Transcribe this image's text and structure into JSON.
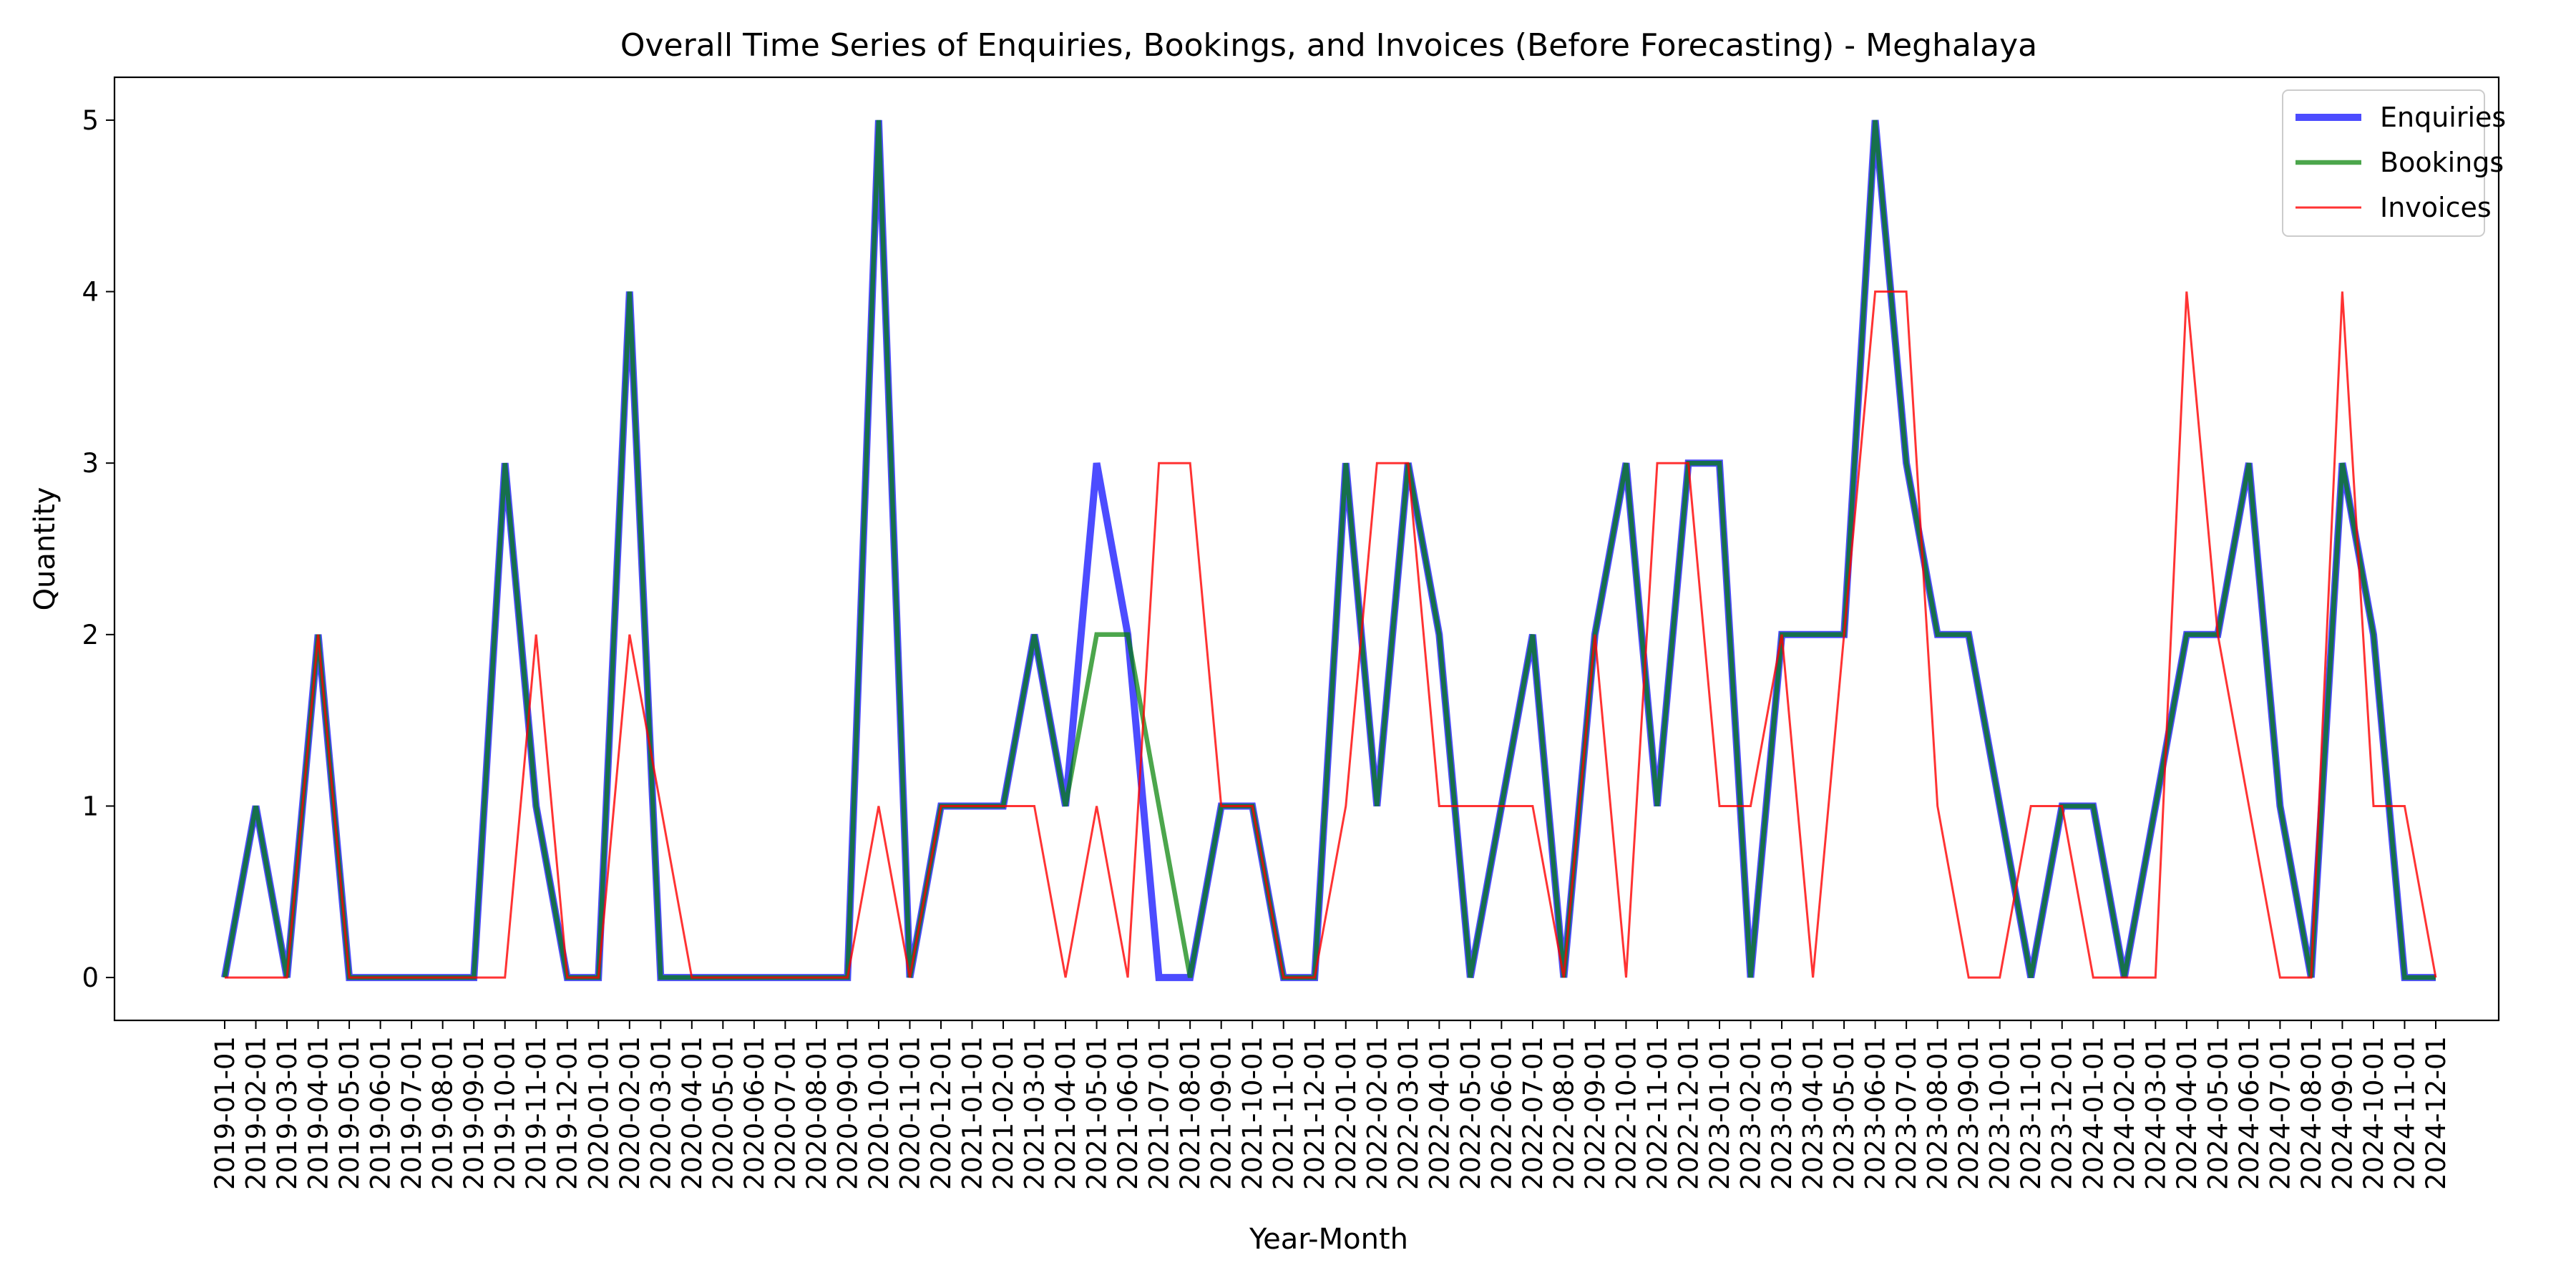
{
  "chart_data": {
    "type": "line",
    "title": "Overall Time Series of Enquiries, Bookings, and Invoices (Before Forecasting) - Meghalaya",
    "xlabel": "Year-Month",
    "ylabel": "Quantity",
    "ylim": [
      -0.25,
      5.25
    ],
    "yticks": [
      0,
      1,
      2,
      3,
      4,
      5
    ],
    "grid": false,
    "legend_position": "top-right",
    "categories": [
      "2019-01-01",
      "2019-02-01",
      "2019-03-01",
      "2019-04-01",
      "2019-05-01",
      "2019-06-01",
      "2019-07-01",
      "2019-08-01",
      "2019-09-01",
      "2019-10-01",
      "2019-11-01",
      "2019-12-01",
      "2020-01-01",
      "2020-02-01",
      "2020-03-01",
      "2020-04-01",
      "2020-05-01",
      "2020-06-01",
      "2020-07-01",
      "2020-08-01",
      "2020-09-01",
      "2020-10-01",
      "2020-11-01",
      "2020-12-01",
      "2021-01-01",
      "2021-02-01",
      "2021-03-01",
      "2021-04-01",
      "2021-05-01",
      "2021-06-01",
      "2021-07-01",
      "2021-08-01",
      "2021-09-01",
      "2021-10-01",
      "2021-11-01",
      "2021-12-01",
      "2022-01-01",
      "2022-02-01",
      "2022-03-01",
      "2022-04-01",
      "2022-05-01",
      "2022-06-01",
      "2022-07-01",
      "2022-08-01",
      "2022-09-01",
      "2022-10-01",
      "2022-11-01",
      "2022-12-01",
      "2023-01-01",
      "2023-02-01",
      "2023-03-01",
      "2023-04-01",
      "2023-05-01",
      "2023-06-01",
      "2023-07-01",
      "2023-08-01",
      "2023-09-01",
      "2023-10-01",
      "2023-11-01",
      "2023-12-01",
      "2024-01-01",
      "2024-02-01",
      "2024-03-01",
      "2024-04-01",
      "2024-05-01",
      "2024-06-01",
      "2024-07-01",
      "2024-08-01",
      "2024-09-01",
      "2024-10-01",
      "2024-11-01",
      "2024-12-01"
    ],
    "series": [
      {
        "name": "Enquiries",
        "color": "#0000ff",
        "values": [
          0,
          1,
          0,
          2,
          0,
          0,
          0,
          0,
          0,
          3,
          1,
          0,
          0,
          4,
          0,
          0,
          0,
          0,
          0,
          0,
          0,
          5,
          0,
          1,
          1,
          1,
          2,
          1,
          3,
          2,
          0,
          0,
          1,
          1,
          0,
          0,
          3,
          1,
          3,
          2,
          0,
          1,
          2,
          0,
          2,
          3,
          1,
          3,
          3,
          0,
          2,
          2,
          2,
          5,
          3,
          2,
          2,
          1,
          0,
          1,
          1,
          0,
          1,
          2,
          2,
          3,
          1,
          0,
          3,
          2,
          0,
          0
        ]
      },
      {
        "name": "Bookings",
        "color": "#008000",
        "values": [
          0,
          1,
          0,
          2,
          0,
          0,
          0,
          0,
          0,
          3,
          1,
          0,
          0,
          4,
          0,
          0,
          0,
          0,
          0,
          0,
          0,
          5,
          0,
          1,
          1,
          1,
          2,
          1,
          2,
          2,
          1,
          0,
          1,
          1,
          0,
          0,
          3,
          1,
          3,
          2,
          0,
          1,
          2,
          0,
          2,
          3,
          1,
          3,
          3,
          0,
          2,
          2,
          2,
          5,
          3,
          2,
          2,
          1,
          0,
          1,
          1,
          0,
          1,
          2,
          2,
          3,
          1,
          0,
          3,
          2,
          0,
          0
        ]
      },
      {
        "name": "Invoices",
        "color": "#ff0000",
        "values": [
          0,
          0,
          0,
          2,
          0,
          0,
          0,
          0,
          0,
          0,
          2,
          0,
          0,
          2,
          1,
          0,
          0,
          0,
          0,
          0,
          0,
          1,
          0,
          1,
          1,
          1,
          1,
          0,
          1,
          0,
          3,
          3,
          1,
          1,
          0,
          0,
          1,
          3,
          3,
          1,
          1,
          1,
          1,
          0,
          2,
          0,
          3,
          3,
          1,
          1,
          2,
          0,
          2,
          4,
          4,
          1,
          0,
          0,
          1,
          1,
          0,
          0,
          0,
          4,
          2,
          1,
          0,
          0,
          4,
          1,
          1,
          0
        ]
      }
    ]
  }
}
